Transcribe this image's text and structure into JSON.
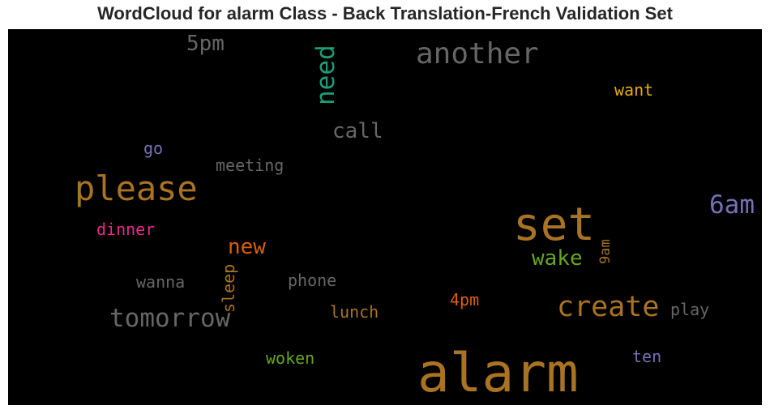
{
  "title": "WordCloud for alarm Class - Back Translation-French Validation Set",
  "words": {
    "alarm": {
      "text": "alarm",
      "color": "#a87322"
    },
    "set": {
      "text": "set",
      "color": "#a87322"
    },
    "please": {
      "text": "please",
      "color": "#a87322"
    },
    "another": {
      "text": "another",
      "color": "#666666"
    },
    "tomorrow": {
      "text": "tomorrow",
      "color": "#666666"
    },
    "create": {
      "text": "create",
      "color": "#a87322"
    },
    "need": {
      "text": "need",
      "color": "#1b9e77",
      "vertical": true
    },
    "sixam": {
      "text": "6am",
      "color": "#7570b3"
    },
    "call": {
      "text": "call",
      "color": "#666666"
    },
    "fivepm": {
      "text": "5pm",
      "color": "#666666"
    },
    "wake": {
      "text": "wake",
      "color": "#66a61e"
    },
    "new": {
      "text": "new",
      "color": "#d95f02"
    },
    "want": {
      "text": "want",
      "color": "#e6ab02"
    },
    "meeting": {
      "text": "meeting",
      "color": "#666666"
    },
    "go": {
      "text": "go",
      "color": "#7570b3"
    },
    "dinner": {
      "text": "dinner",
      "color": "#e7298a"
    },
    "sleep": {
      "text": "sleep",
      "color": "#a87322",
      "vertical": true
    },
    "nineam": {
      "text": "9am",
      "color": "#a87322",
      "vertical": true
    },
    "wanna": {
      "text": "wanna",
      "color": "#666666"
    },
    "phone": {
      "text": "phone",
      "color": "#666666"
    },
    "fourpm": {
      "text": "4pm",
      "color": "#d95f02"
    },
    "lunch": {
      "text": "lunch",
      "color": "#a87322"
    },
    "play": {
      "text": "play",
      "color": "#666666"
    },
    "woken": {
      "text": "woken",
      "color": "#66a61e"
    },
    "ten": {
      "text": "ten",
      "color": "#7570b3"
    }
  }
}
